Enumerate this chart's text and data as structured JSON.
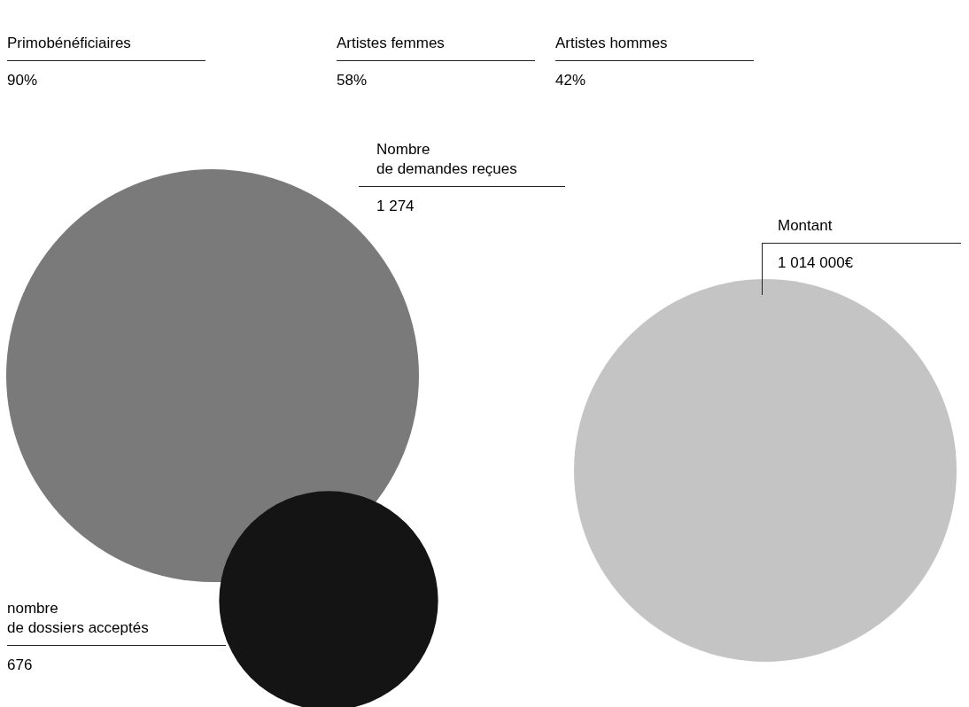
{
  "chart_data": {
    "type": "other",
    "categories": [
      "Primobénéficiaires",
      "Artistes femmes",
      "Artistes hommes",
      "Nombre\nde demandes reçues",
      "nombre\nde dossiers acceptés",
      "Montant"
    ],
    "values": [
      90,
      58,
      42,
      1274,
      676,
      1014000
    ],
    "value_labels": [
      "90%",
      "58%",
      "42%",
      "1 274",
      "676",
      "1 014 000€"
    ],
    "colors": [
      null,
      null,
      null,
      "#7a7a7a",
      "#141414",
      "#c4c4c4"
    ]
  }
}
